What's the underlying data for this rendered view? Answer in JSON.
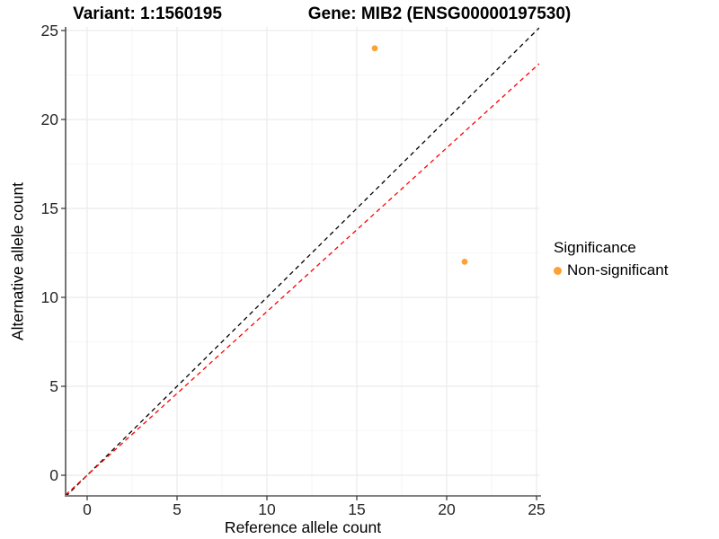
{
  "titles": {
    "variant": "Variant: 1:1560195",
    "gene": "Gene: MIB2 (ENSG00000197530)"
  },
  "chart_data": {
    "type": "scatter",
    "title": "Variant: 1:1560195   Gene: MIB2 (ENSG00000197530)",
    "xlabel": "Reference allele count",
    "ylabel": "Alternative allele count",
    "xlim": [
      -1.2,
      25.15
    ],
    "ylim": [
      -1.16,
      25.2
    ],
    "xticks": [
      0,
      5,
      10,
      15,
      20,
      25
    ],
    "yticks": [
      0,
      5,
      10,
      15,
      20,
      25
    ],
    "minor_xticks": [
      2.5,
      7.5,
      12.5,
      17.5,
      22.5
    ],
    "minor_yticks": [
      2.5,
      7.5,
      12.5,
      17.5,
      22.5
    ],
    "grid": true,
    "background": "#ffffff",
    "major_grid_color": "#ebebeb",
    "minor_grid_color": "#f6f6f6",
    "series": [
      {
        "name": "Non-significant",
        "color": "#FFA033",
        "points": [
          {
            "x": 16,
            "y": 24
          },
          {
            "x": 21,
            "y": 12
          }
        ]
      }
    ],
    "lines": [
      {
        "name": "identity-line",
        "slope": 1,
        "intercept": 0,
        "color": "#000000",
        "style": "dashed"
      },
      {
        "name": "expected-ratio-line",
        "slope": 0.92,
        "intercept": 0,
        "color": "#ff0000",
        "style": "dashed"
      }
    ],
    "legend": {
      "title": "Significance",
      "position": "right",
      "entries": [
        {
          "label": "Non-significant",
          "color": "#FFA033"
        }
      ]
    }
  },
  "colors": {
    "point_orange": "#FFA033",
    "identity_line": "#000000",
    "ratio_line": "#ff0000",
    "axis_text": "#262626",
    "y_axis_line": "#1a1a1a",
    "x_axis_line": "#808080"
  }
}
